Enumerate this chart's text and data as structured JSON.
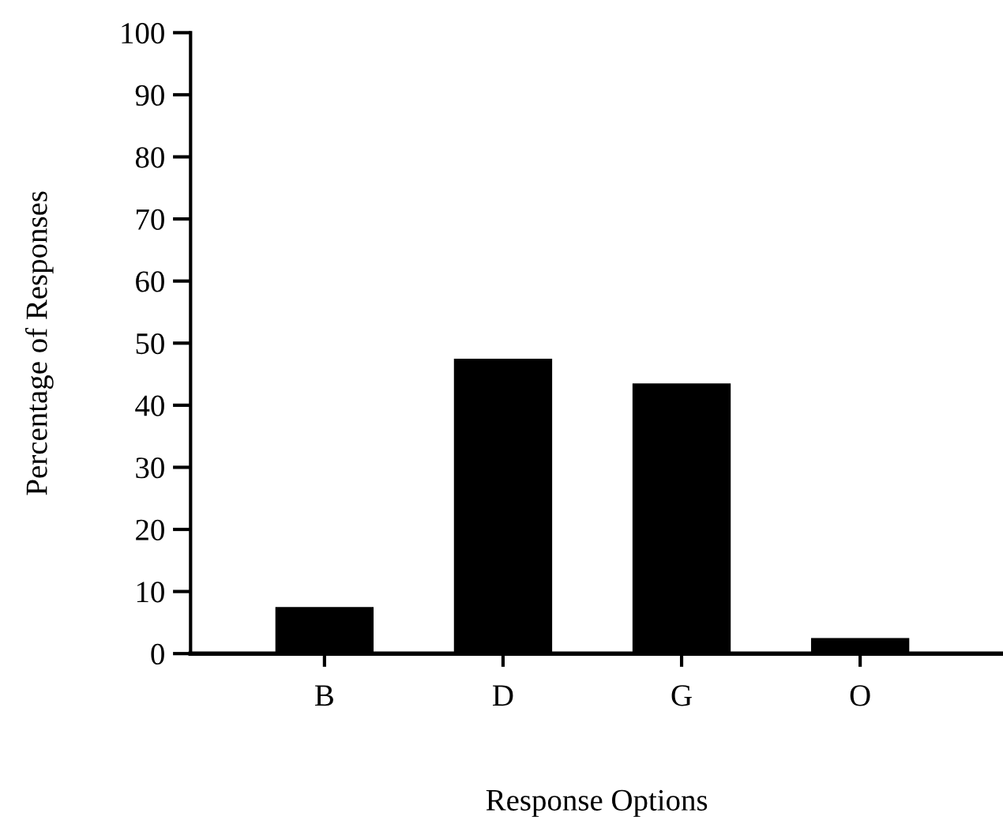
{
  "chart_data": {
    "type": "bar",
    "xlabel": "Response Options",
    "ylabel": "Percentage of Responses",
    "categories": [
      "B",
      "D",
      "G",
      "O"
    ],
    "values": [
      7.5,
      47.5,
      43.5,
      2.5
    ],
    "color": "#000000",
    "ylim": [
      0,
      100
    ],
    "yticks": [
      0,
      10,
      20,
      30,
      40,
      50,
      60,
      70,
      80,
      90,
      100
    ],
    "grid": false
  }
}
